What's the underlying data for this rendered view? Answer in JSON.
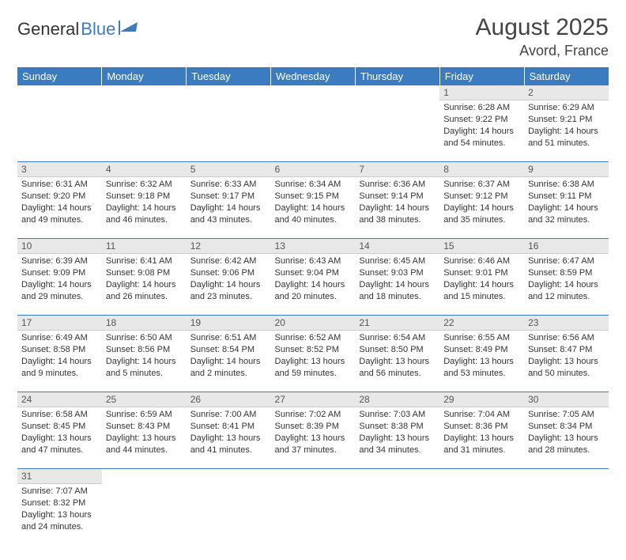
{
  "logo": {
    "text1": "General",
    "text2": "Blue"
  },
  "title": "August 2025",
  "location": "Avord, France",
  "weekdays": [
    "Sunday",
    "Monday",
    "Tuesday",
    "Wednesday",
    "Thursday",
    "Friday",
    "Saturday"
  ],
  "colors": {
    "header_bg": "#3b7bbf",
    "header_text": "#ffffff",
    "daynum_bg": "#e8e8e8",
    "row_divider": "#3b7bbf",
    "text": "#333333"
  },
  "weeks": [
    [
      null,
      null,
      null,
      null,
      null,
      {
        "n": "1",
        "sr": "Sunrise: 6:28 AM",
        "ss": "Sunset: 9:22 PM",
        "d1": "Daylight: 14 hours",
        "d2": "and 54 minutes."
      },
      {
        "n": "2",
        "sr": "Sunrise: 6:29 AM",
        "ss": "Sunset: 9:21 PM",
        "d1": "Daylight: 14 hours",
        "d2": "and 51 minutes."
      }
    ],
    [
      {
        "n": "3",
        "sr": "Sunrise: 6:31 AM",
        "ss": "Sunset: 9:20 PM",
        "d1": "Daylight: 14 hours",
        "d2": "and 49 minutes."
      },
      {
        "n": "4",
        "sr": "Sunrise: 6:32 AM",
        "ss": "Sunset: 9:18 PM",
        "d1": "Daylight: 14 hours",
        "d2": "and 46 minutes."
      },
      {
        "n": "5",
        "sr": "Sunrise: 6:33 AM",
        "ss": "Sunset: 9:17 PM",
        "d1": "Daylight: 14 hours",
        "d2": "and 43 minutes."
      },
      {
        "n": "6",
        "sr": "Sunrise: 6:34 AM",
        "ss": "Sunset: 9:15 PM",
        "d1": "Daylight: 14 hours",
        "d2": "and 40 minutes."
      },
      {
        "n": "7",
        "sr": "Sunrise: 6:36 AM",
        "ss": "Sunset: 9:14 PM",
        "d1": "Daylight: 14 hours",
        "d2": "and 38 minutes."
      },
      {
        "n": "8",
        "sr": "Sunrise: 6:37 AM",
        "ss": "Sunset: 9:12 PM",
        "d1": "Daylight: 14 hours",
        "d2": "and 35 minutes."
      },
      {
        "n": "9",
        "sr": "Sunrise: 6:38 AM",
        "ss": "Sunset: 9:11 PM",
        "d1": "Daylight: 14 hours",
        "d2": "and 32 minutes."
      }
    ],
    [
      {
        "n": "10",
        "sr": "Sunrise: 6:39 AM",
        "ss": "Sunset: 9:09 PM",
        "d1": "Daylight: 14 hours",
        "d2": "and 29 minutes."
      },
      {
        "n": "11",
        "sr": "Sunrise: 6:41 AM",
        "ss": "Sunset: 9:08 PM",
        "d1": "Daylight: 14 hours",
        "d2": "and 26 minutes."
      },
      {
        "n": "12",
        "sr": "Sunrise: 6:42 AM",
        "ss": "Sunset: 9:06 PM",
        "d1": "Daylight: 14 hours",
        "d2": "and 23 minutes."
      },
      {
        "n": "13",
        "sr": "Sunrise: 6:43 AM",
        "ss": "Sunset: 9:04 PM",
        "d1": "Daylight: 14 hours",
        "d2": "and 20 minutes."
      },
      {
        "n": "14",
        "sr": "Sunrise: 6:45 AM",
        "ss": "Sunset: 9:03 PM",
        "d1": "Daylight: 14 hours",
        "d2": "and 18 minutes."
      },
      {
        "n": "15",
        "sr": "Sunrise: 6:46 AM",
        "ss": "Sunset: 9:01 PM",
        "d1": "Daylight: 14 hours",
        "d2": "and 15 minutes."
      },
      {
        "n": "16",
        "sr": "Sunrise: 6:47 AM",
        "ss": "Sunset: 8:59 PM",
        "d1": "Daylight: 14 hours",
        "d2": "and 12 minutes."
      }
    ],
    [
      {
        "n": "17",
        "sr": "Sunrise: 6:49 AM",
        "ss": "Sunset: 8:58 PM",
        "d1": "Daylight: 14 hours",
        "d2": "and 9 minutes."
      },
      {
        "n": "18",
        "sr": "Sunrise: 6:50 AM",
        "ss": "Sunset: 8:56 PM",
        "d1": "Daylight: 14 hours",
        "d2": "and 5 minutes."
      },
      {
        "n": "19",
        "sr": "Sunrise: 6:51 AM",
        "ss": "Sunset: 8:54 PM",
        "d1": "Daylight: 14 hours",
        "d2": "and 2 minutes."
      },
      {
        "n": "20",
        "sr": "Sunrise: 6:52 AM",
        "ss": "Sunset: 8:52 PM",
        "d1": "Daylight: 13 hours",
        "d2": "and 59 minutes."
      },
      {
        "n": "21",
        "sr": "Sunrise: 6:54 AM",
        "ss": "Sunset: 8:50 PM",
        "d1": "Daylight: 13 hours",
        "d2": "and 56 minutes."
      },
      {
        "n": "22",
        "sr": "Sunrise: 6:55 AM",
        "ss": "Sunset: 8:49 PM",
        "d1": "Daylight: 13 hours",
        "d2": "and 53 minutes."
      },
      {
        "n": "23",
        "sr": "Sunrise: 6:56 AM",
        "ss": "Sunset: 8:47 PM",
        "d1": "Daylight: 13 hours",
        "d2": "and 50 minutes."
      }
    ],
    [
      {
        "n": "24",
        "sr": "Sunrise: 6:58 AM",
        "ss": "Sunset: 8:45 PM",
        "d1": "Daylight: 13 hours",
        "d2": "and 47 minutes."
      },
      {
        "n": "25",
        "sr": "Sunrise: 6:59 AM",
        "ss": "Sunset: 8:43 PM",
        "d1": "Daylight: 13 hours",
        "d2": "and 44 minutes."
      },
      {
        "n": "26",
        "sr": "Sunrise: 7:00 AM",
        "ss": "Sunset: 8:41 PM",
        "d1": "Daylight: 13 hours",
        "d2": "and 41 minutes."
      },
      {
        "n": "27",
        "sr": "Sunrise: 7:02 AM",
        "ss": "Sunset: 8:39 PM",
        "d1": "Daylight: 13 hours",
        "d2": "and 37 minutes."
      },
      {
        "n": "28",
        "sr": "Sunrise: 7:03 AM",
        "ss": "Sunset: 8:38 PM",
        "d1": "Daylight: 13 hours",
        "d2": "and 34 minutes."
      },
      {
        "n": "29",
        "sr": "Sunrise: 7:04 AM",
        "ss": "Sunset: 8:36 PM",
        "d1": "Daylight: 13 hours",
        "d2": "and 31 minutes."
      },
      {
        "n": "30",
        "sr": "Sunrise: 7:05 AM",
        "ss": "Sunset: 8:34 PM",
        "d1": "Daylight: 13 hours",
        "d2": "and 28 minutes."
      }
    ],
    [
      {
        "n": "31",
        "sr": "Sunrise: 7:07 AM",
        "ss": "Sunset: 8:32 PM",
        "d1": "Daylight: 13 hours",
        "d2": "and 24 minutes."
      },
      null,
      null,
      null,
      null,
      null,
      null
    ]
  ]
}
